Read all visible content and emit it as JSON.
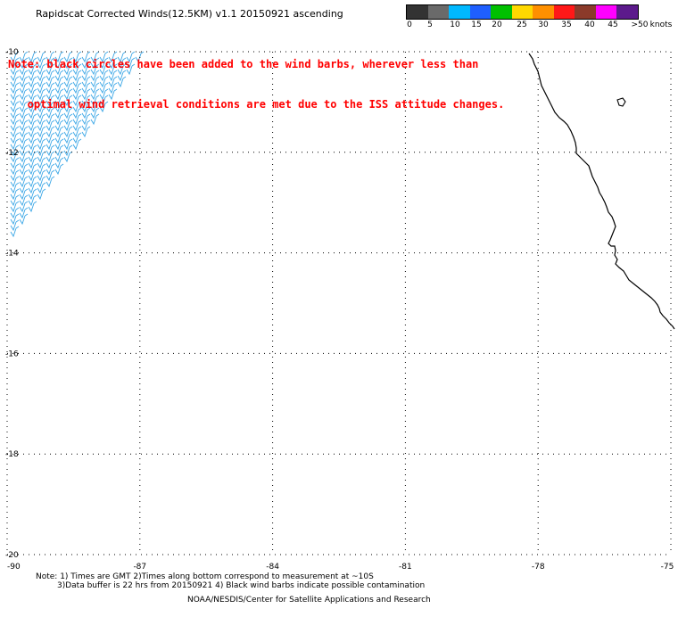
{
  "title": "Rapidscat Corrected Winds(12.5KM) v1.1 20150921 ascending",
  "note_lines": [
    "Note: black circles have been added to the wind barbs, wherever less than",
    "   optimal wind retrieval conditions are met due to the ISS attitude changes."
  ],
  "speed_scale": {
    "unit": "knots",
    "labels": [
      "0",
      "5",
      "10",
      "15",
      "20",
      "25",
      "30",
      "35",
      "40",
      "45",
      ">50"
    ],
    "colors": [
      "#333333",
      "#6a6a6a",
      "#00b8ff",
      "#1f5fff",
      "#00c000",
      "#ffd800",
      "#ff9000",
      "#ff1818",
      "#8b3a2a",
      "#ff00ff",
      "#5c1a8c"
    ]
  },
  "map": {
    "lon_range": [
      -90,
      -75
    ],
    "lat_range": [
      -20,
      -10
    ],
    "lon_ticks": [
      "-90",
      "-87",
      "-84",
      "-81",
      "-78",
      "-75"
    ],
    "lat_ticks": [
      "-10",
      "-12",
      "-14",
      "-16",
      "-18",
      "-20"
    ],
    "gridlines": "dotted",
    "coast_color": "#000000",
    "barb_color": "#3aa6e6"
  },
  "footer": {
    "line1": "Note: 1) Times are GMT 2)Times along bottom correspond to measurement at ~10S",
    "line2": "3)Data buffer is 22 hrs from 20150921 4) Black wind barbs indicate possible contamination",
    "line3": "NOAA/NESDIS/Center for Satellite Applications and Research"
  }
}
